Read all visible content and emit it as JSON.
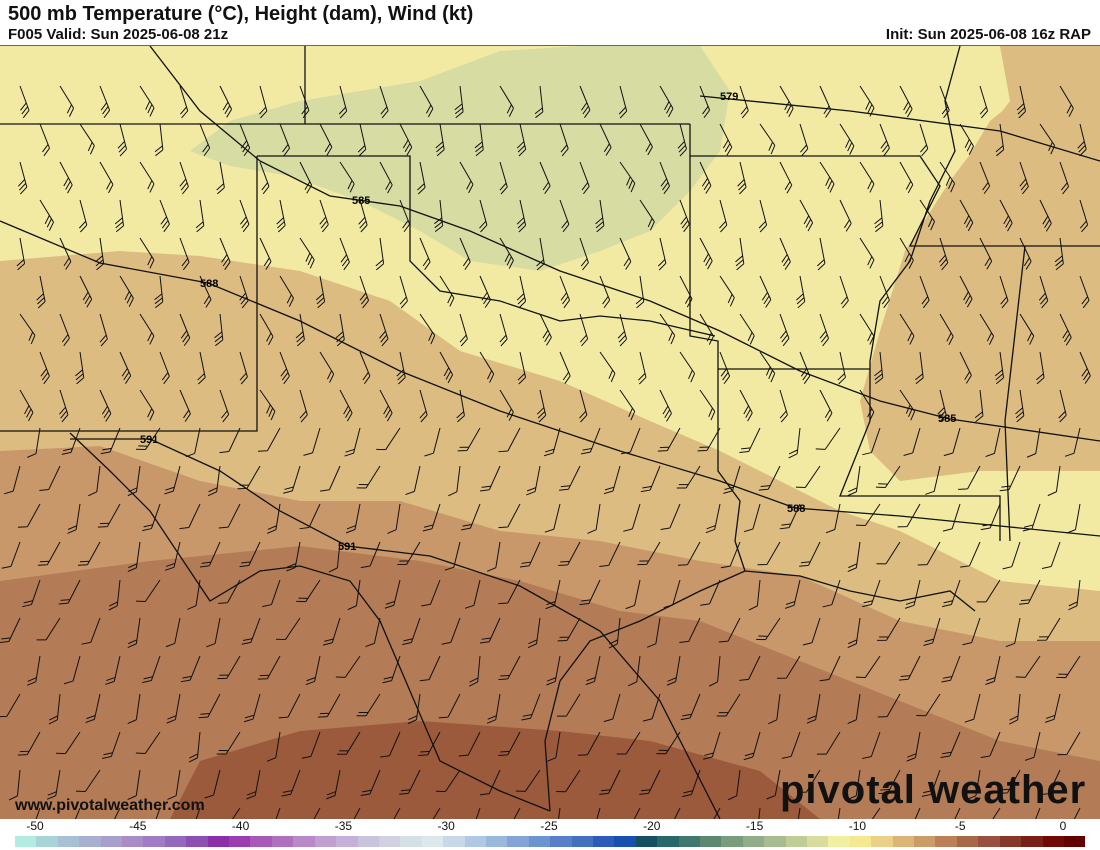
{
  "header": {
    "title": "500 mb Temperature (°C), Height (dam), Wind (kt)",
    "valid": "F005 Valid: Sun 2025-06-08 21z",
    "init": "Init: Sun 2025-06-08 16z RAP"
  },
  "map": {
    "contour_labels": [
      "579",
      "585",
      "588",
      "591",
      "585",
      "588",
      "591"
    ],
    "fill_colors": {
      "pale_yellow": "#f2eaa2",
      "green": "#d6dca2",
      "tan": "#dcbc80",
      "light_brown": "#c8986a",
      "brown": "#b47c56",
      "dark_brown": "#9c5a3c"
    }
  },
  "branding": {
    "url": "www.pivotalweather.com",
    "logo": "pivotal weather"
  },
  "colorbar": {
    "tick_labels": [
      "-50",
      "-45",
      "-40",
      "-35",
      "-30",
      "-25",
      "-20",
      "-15",
      "-10",
      "-5",
      "0"
    ],
    "colors": [
      "#b2ece0",
      "#a8d4d8",
      "#a8c0d4",
      "#a8b0d0",
      "#a8a0cc",
      "#a88cc8",
      "#a07cc4",
      "#9468bc",
      "#8c50b4",
      "#8a2eac",
      "#9c3cb0",
      "#a858b8",
      "#b070c0",
      "#b888c8",
      "#c0a0d0",
      "#c4b0d8",
      "#c8c4dc",
      "#d0d0e0",
      "#d4e0e4",
      "#dce8ec",
      "#c8d8e8",
      "#b0c8e4",
      "#98b8dc",
      "#84a4d8",
      "#6c94d0",
      "#5880c8",
      "#4470c0",
      "#2c5cb8",
      "#1850b0",
      "#145060",
      "#286868",
      "#407870",
      "#5c8870",
      "#789c7c",
      "#90ac88",
      "#a8bc90",
      "#c0cc98",
      "#d8dc9c",
      "#f0f0a0",
      "#f4e890",
      "#ecd088",
      "#dcb478",
      "#cc9c68",
      "#bc8058",
      "#a86848",
      "#985040",
      "#883828",
      "#782018",
      "#700808",
      "#600000"
    ]
  }
}
